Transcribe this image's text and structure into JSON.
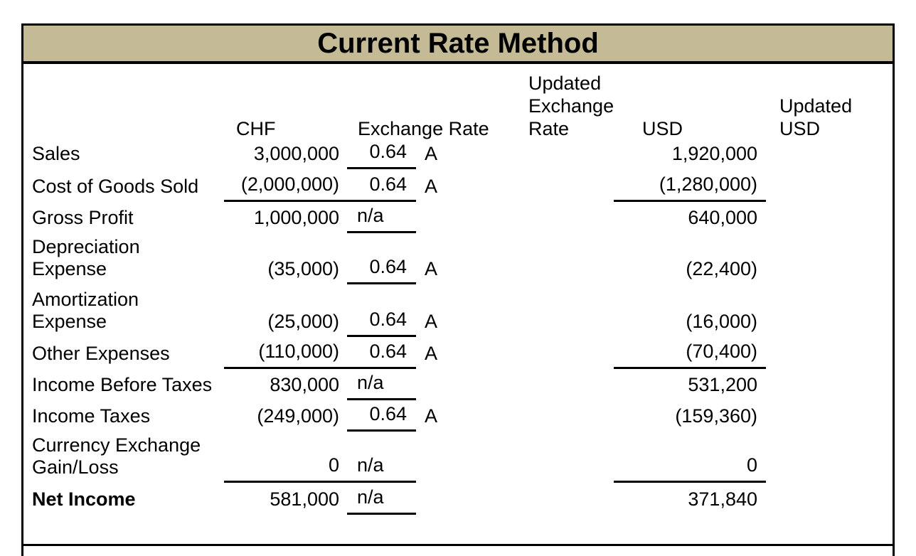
{
  "title": "Current Rate Method",
  "colors": {
    "title_bg": "#c4bb96",
    "line": "#000000"
  },
  "columns": {
    "chf": "CHF",
    "exchange_rate": "Exchange Rate",
    "updated_exchange_rate": "Updated\nExchange\nRate",
    "usd": "USD",
    "updated_usd": "Updated\nUSD"
  },
  "rows": [
    {
      "label": "Sales",
      "chf": "3,000,000",
      "rate": "0.64",
      "marker": "A",
      "updated_rate": "",
      "usd": "1,920,000",
      "updated_usd": ""
    },
    {
      "label": "Cost of Goods Sold",
      "chf": "(2,000,000)",
      "rate": "0.64",
      "marker": "A",
      "updated_rate": "",
      "usd": "(1,280,000)",
      "updated_usd": ""
    },
    {
      "label": "Gross Profit",
      "chf": "1,000,000",
      "rate": "n/a",
      "marker": "",
      "updated_rate": "",
      "usd": "640,000",
      "updated_usd": ""
    },
    {
      "label": "Depreciation\nExpense",
      "chf": "(35,000)",
      "rate": "0.64",
      "marker": "A",
      "updated_rate": "",
      "usd": "(22,400)",
      "updated_usd": ""
    },
    {
      "label": "Amortization\nExpense",
      "chf": "(25,000)",
      "rate": "0.64",
      "marker": "A",
      "updated_rate": "",
      "usd": "(16,000)",
      "updated_usd": ""
    },
    {
      "label": "Other Expenses",
      "chf": "(110,000)",
      "rate": "0.64",
      "marker": "A",
      "updated_rate": "",
      "usd": "(70,400)",
      "updated_usd": ""
    },
    {
      "label": "Income Before Taxes",
      "chf": "830,000",
      "rate": "n/a",
      "marker": "",
      "updated_rate": "",
      "usd": "531,200",
      "updated_usd": ""
    },
    {
      "label": "Income Taxes",
      "chf": "(249,000)",
      "rate": "0.64",
      "marker": "A",
      "updated_rate": "",
      "usd": "(159,360)",
      "updated_usd": ""
    },
    {
      "label": "Currency Exchange\nGain/Loss",
      "chf": "0",
      "rate": "n/a",
      "marker": "",
      "updated_rate": "",
      "usd": "0",
      "updated_usd": ""
    },
    {
      "label": "Net Income",
      "chf": "581,000",
      "rate": "n/a",
      "marker": "",
      "updated_rate": "",
      "usd": "371,840",
      "updated_usd": ""
    }
  ]
}
